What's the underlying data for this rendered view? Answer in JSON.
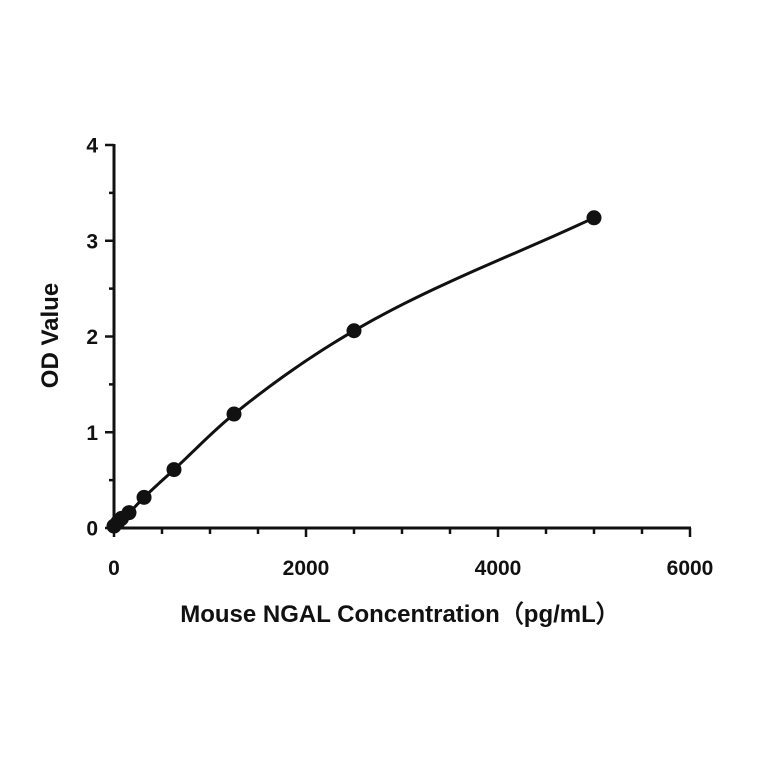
{
  "chart_data": {
    "type": "scatter",
    "title": "",
    "xlabel": "Mouse NGAL Concentration（pg/mL）",
    "ylabel": "OD Value",
    "xlim": [
      0,
      6000
    ],
    "ylim": [
      0,
      4
    ],
    "x_ticks": [
      0,
      2000,
      4000,
      6000
    ],
    "x_tick_labels": [
      "0",
      "2000",
      "4000",
      "6000"
    ],
    "x_minor_step": 500,
    "y_ticks": [
      0,
      1,
      2,
      3,
      4
    ],
    "y_tick_labels": [
      "0",
      "1",
      "2",
      "3",
      "4"
    ],
    "y_minor_step": 0.5,
    "grid": false,
    "series": [
      {
        "x": [
          0,
          39,
          78,
          156,
          313,
          625,
          1250,
          2500,
          5000
        ],
        "y": [
          0.02,
          0.06,
          0.1,
          0.16,
          0.32,
          0.61,
          1.19,
          2.06,
          3.24
        ]
      }
    ],
    "fit_curve": true
  }
}
